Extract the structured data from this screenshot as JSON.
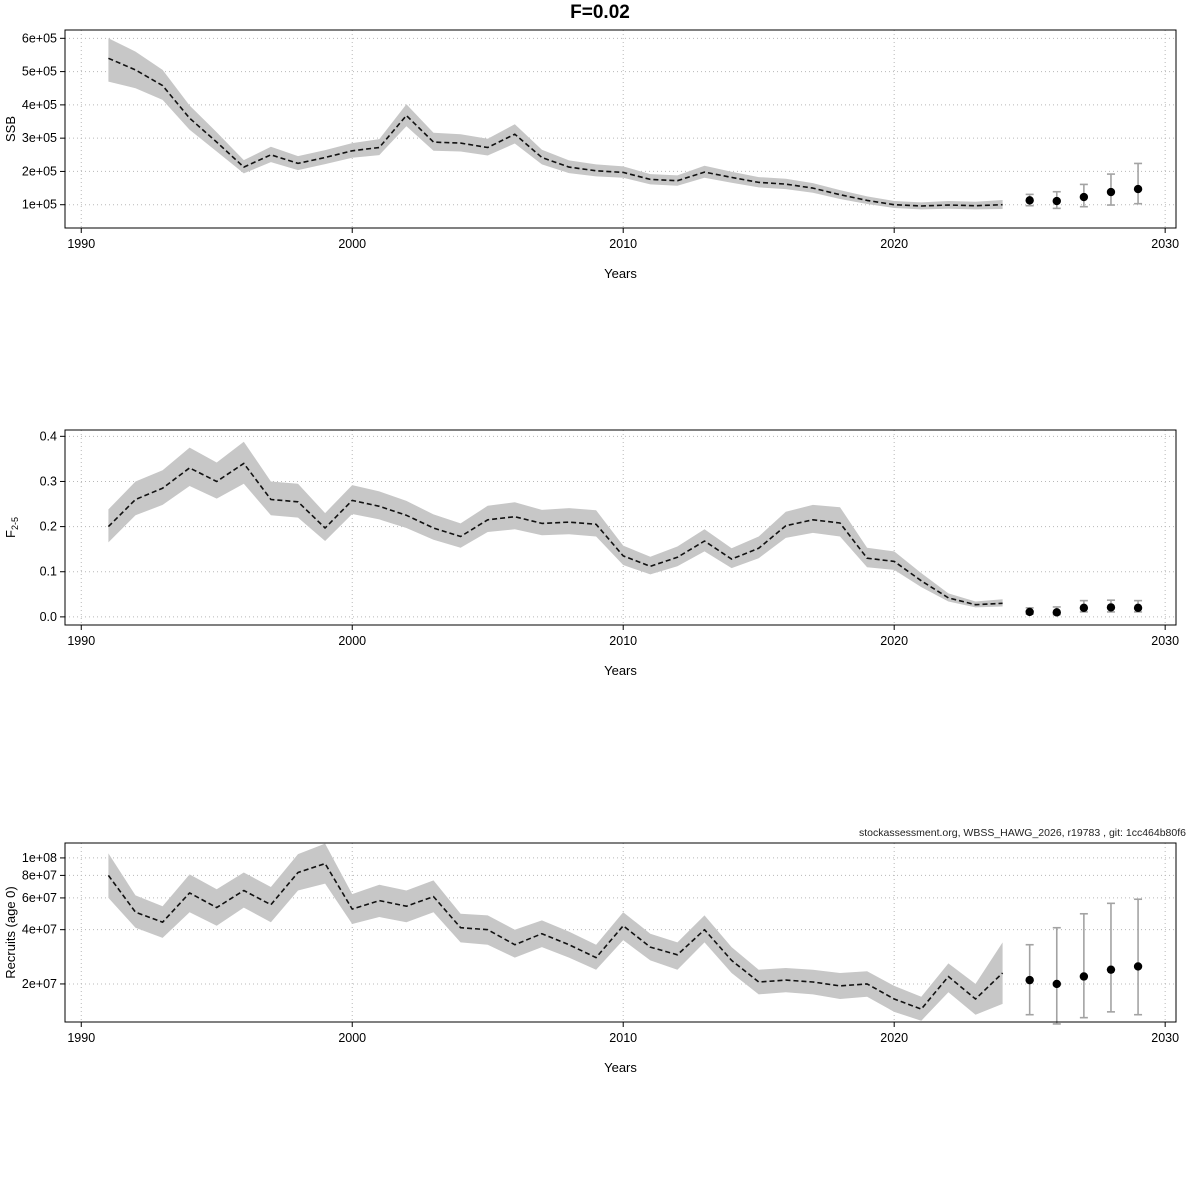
{
  "page": {
    "title": "F=0.02",
    "watermark": "stockassessment.org, WBSS_HAWG_2026, r19783 , git: 1cc464b80f6"
  },
  "colors": {
    "band": "#c7c7c7",
    "line": "#111111",
    "grid": "#b8b8b8",
    "errorbar": "#a3a3a3",
    "point": "#000000"
  },
  "chart_data": [
    {
      "type": "line",
      "name": "ssb",
      "ylabel": "SSB",
      "xlabel": "Years",
      "scale": "linear",
      "xlim": [
        1989.4,
        2030.4
      ],
      "ylim": [
        30000,
        625000
      ],
      "x_ticks": [
        1990,
        2000,
        2010,
        2020,
        2030
      ],
      "y_ticks": [
        100000,
        200000,
        300000,
        400000,
        500000,
        600000
      ],
      "y_tick_labels": [
        "1e+05",
        "2e+05",
        "3e+05",
        "4e+05",
        "5e+05",
        "6e+05"
      ],
      "years": [
        1991,
        1992,
        1993,
        1994,
        1995,
        1996,
        1997,
        1998,
        1999,
        2000,
        2001,
        2002,
        2003,
        2004,
        2005,
        2006,
        2007,
        2008,
        2009,
        2010,
        2011,
        2012,
        2013,
        2014,
        2015,
        2016,
        2017,
        2018,
        2019,
        2020,
        2021,
        2022,
        2023,
        2024
      ],
      "mean": [
        540000,
        505000,
        458000,
        360000,
        288000,
        213000,
        250000,
        224000,
        242000,
        262000,
        272000,
        368000,
        288000,
        285000,
        272000,
        312000,
        242000,
        213000,
        202000,
        197000,
        176000,
        172000,
        198000,
        182000,
        167000,
        162000,
        150000,
        130000,
        113000,
        100000,
        96000,
        99000,
        97000,
        100000
      ],
      "lower": [
        470000,
        450000,
        415000,
        325000,
        260000,
        194000,
        228000,
        204000,
        222000,
        241000,
        249000,
        336000,
        262000,
        260000,
        248000,
        284000,
        221000,
        195000,
        185000,
        181000,
        161000,
        157000,
        181000,
        166000,
        152000,
        147000,
        136000,
        117000,
        102000,
        90000,
        86000,
        88000,
        86000,
        87000
      ],
      "upper": [
        600000,
        560000,
        505000,
        398000,
        318000,
        234000,
        274000,
        246000,
        264000,
        285000,
        297000,
        402000,
        316000,
        312000,
        298000,
        342000,
        265000,
        233000,
        221000,
        215000,
        192000,
        188000,
        217000,
        199000,
        183000,
        178000,
        165000,
        144000,
        125000,
        111000,
        107000,
        111000,
        109000,
        114000
      ],
      "forecast": {
        "years": [
          2025,
          2026,
          2027,
          2028,
          2029
        ],
        "mean": [
          113000,
          111000,
          123000,
          138000,
          147000
        ],
        "lower": [
          97000,
          89000,
          94000,
          99000,
          103000
        ],
        "upper": [
          131000,
          139000,
          161000,
          192000,
          224000
        ]
      }
    },
    {
      "type": "line",
      "name": "fishing-mortality",
      "ylabel": "F",
      "ylabel_sub": "2-5",
      "xlabel": "Years",
      "scale": "linear",
      "xlim": [
        1989.4,
        2030.4
      ],
      "ylim": [
        -0.018,
        0.414
      ],
      "x_ticks": [
        1990,
        2000,
        2010,
        2020,
        2030
      ],
      "y_ticks": [
        0.0,
        0.1,
        0.2,
        0.3,
        0.4
      ],
      "y_tick_labels": [
        "0.0",
        "0.1",
        "0.2",
        "0.3",
        "0.4"
      ],
      "years": [
        1991,
        1992,
        1993,
        1994,
        1995,
        1996,
        1997,
        1998,
        1999,
        2000,
        2001,
        2002,
        2003,
        2004,
        2005,
        2006,
        2007,
        2008,
        2009,
        2010,
        2011,
        2012,
        2013,
        2014,
        2015,
        2016,
        2017,
        2018,
        2019,
        2020,
        2021,
        2022,
        2023,
        2024
      ],
      "mean": [
        0.2,
        0.26,
        0.285,
        0.33,
        0.3,
        0.34,
        0.26,
        0.255,
        0.197,
        0.258,
        0.245,
        0.225,
        0.197,
        0.178,
        0.215,
        0.222,
        0.207,
        0.21,
        0.205,
        0.135,
        0.112,
        0.132,
        0.168,
        0.128,
        0.152,
        0.202,
        0.215,
        0.208,
        0.13,
        0.123,
        0.08,
        0.042,
        0.027,
        0.03
      ],
      "lower": [
        0.165,
        0.225,
        0.248,
        0.29,
        0.262,
        0.295,
        0.225,
        0.22,
        0.168,
        0.228,
        0.216,
        0.197,
        0.171,
        0.153,
        0.188,
        0.194,
        0.181,
        0.183,
        0.178,
        0.115,
        0.094,
        0.112,
        0.145,
        0.108,
        0.13,
        0.175,
        0.186,
        0.178,
        0.11,
        0.104,
        0.066,
        0.034,
        0.021,
        0.023
      ],
      "upper": [
        0.238,
        0.3,
        0.325,
        0.375,
        0.342,
        0.388,
        0.3,
        0.295,
        0.23,
        0.292,
        0.278,
        0.257,
        0.227,
        0.207,
        0.246,
        0.254,
        0.237,
        0.241,
        0.236,
        0.158,
        0.133,
        0.156,
        0.194,
        0.152,
        0.178,
        0.233,
        0.248,
        0.243,
        0.153,
        0.145,
        0.097,
        0.052,
        0.034,
        0.039
      ],
      "forecast": {
        "years": [
          2025,
          2026,
          2027,
          2028,
          2029
        ],
        "mean": [
          0.011,
          0.01,
          0.02,
          0.021,
          0.02
        ],
        "lower": [
          0.006,
          0.005,
          0.011,
          0.011,
          0.011
        ],
        "upper": [
          0.02,
          0.022,
          0.036,
          0.037,
          0.036
        ]
      }
    },
    {
      "type": "line",
      "name": "recruitment",
      "ylabel": "Recruits (age 0)",
      "xlabel": "Years",
      "scale": "log",
      "xlim": [
        1989.4,
        2030.4
      ],
      "ylim": [
        12300000.0,
        121000000.0
      ],
      "x_ticks": [
        1990,
        2000,
        2010,
        2020,
        2030
      ],
      "y_ticks": [
        20000000.0,
        40000000.0,
        60000000.0,
        80000000.0,
        100000000.0
      ],
      "y_tick_labels": [
        "2e+07",
        "4e+07",
        "6e+07",
        "8e+07",
        "1e+08"
      ],
      "years": [
        1991,
        1992,
        1993,
        1994,
        1995,
        1996,
        1997,
        1998,
        1999,
        2000,
        2001,
        2002,
        2003,
        2004,
        2005,
        2006,
        2007,
        2008,
        2009,
        2010,
        2011,
        2012,
        2013,
        2014,
        2015,
        2016,
        2017,
        2018,
        2019,
        2020,
        2021,
        2022,
        2023,
        2024
      ],
      "mean": [
        80000000.0,
        50000000.0,
        44000000.0,
        64000000.0,
        53000000.0,
        66000000.0,
        55000000.0,
        83000000.0,
        93000000.0,
        52000000.0,
        58000000.0,
        54000000.0,
        61000000.0,
        41000000.0,
        40000000.0,
        33000000.0,
        38000000.0,
        33000000.0,
        28000000.0,
        42000000.0,
        32000000.0,
        29000000.0,
        40000000.0,
        27000000.0,
        20500000.0,
        21000000.0,
        20500000.0,
        19500000.0,
        20000000.0,
        16500000.0,
        14500000.0,
        22000000.0,
        16500000.0,
        23000000.0
      ],
      "lower": [
        60000000.0,
        41000000.0,
        36000000.0,
        50000000.0,
        42000000.0,
        53000000.0,
        44000000.0,
        66000000.0,
        72000000.0,
        43000000.0,
        47000000.0,
        44000000.0,
        50000000.0,
        34000000.0,
        33000000.0,
        28000000.0,
        32000000.0,
        28000000.0,
        24000000.0,
        35000000.0,
        27000000.0,
        24000000.0,
        34000000.0,
        23000000.0,
        17500000.0,
        18000000.0,
        17500000.0,
        16500000.0,
        17000000.0,
        14000000.0,
        12500000.0,
        18000000.0,
        13500000.0,
        15500000.0
      ],
      "upper": [
        106000000.0,
        62000000.0,
        54000000.0,
        81000000.0,
        67000000.0,
        83000000.0,
        69000000.0,
        105000000.0,
        120000000.0,
        63000000.0,
        71000000.0,
        66000000.0,
        75000000.0,
        49000000.0,
        48000000.0,
        40000000.0,
        45000000.0,
        39000000.0,
        33000000.0,
        50000000.0,
        38000000.0,
        34000000.0,
        48000000.0,
        32000000.0,
        24000000.0,
        24500000.0,
        24000000.0,
        23000000.0,
        23500000.0,
        19500000.0,
        17000000.0,
        26000000.0,
        20000000.0,
        34000000.0
      ],
      "forecast": {
        "years": [
          2025,
          2026,
          2027,
          2028,
          2029
        ],
        "mean": [
          21000000.0,
          20000000.0,
          22000000.0,
          24000000.0,
          25000000.0
        ],
        "lower": [
          13500000.0,
          12000000.0,
          13000000.0,
          14000000.0,
          13500000.0
        ],
        "upper": [
          33000000.0,
          41000000.0,
          49000000.0,
          56000000.0,
          59000000.0
        ]
      }
    }
  ]
}
